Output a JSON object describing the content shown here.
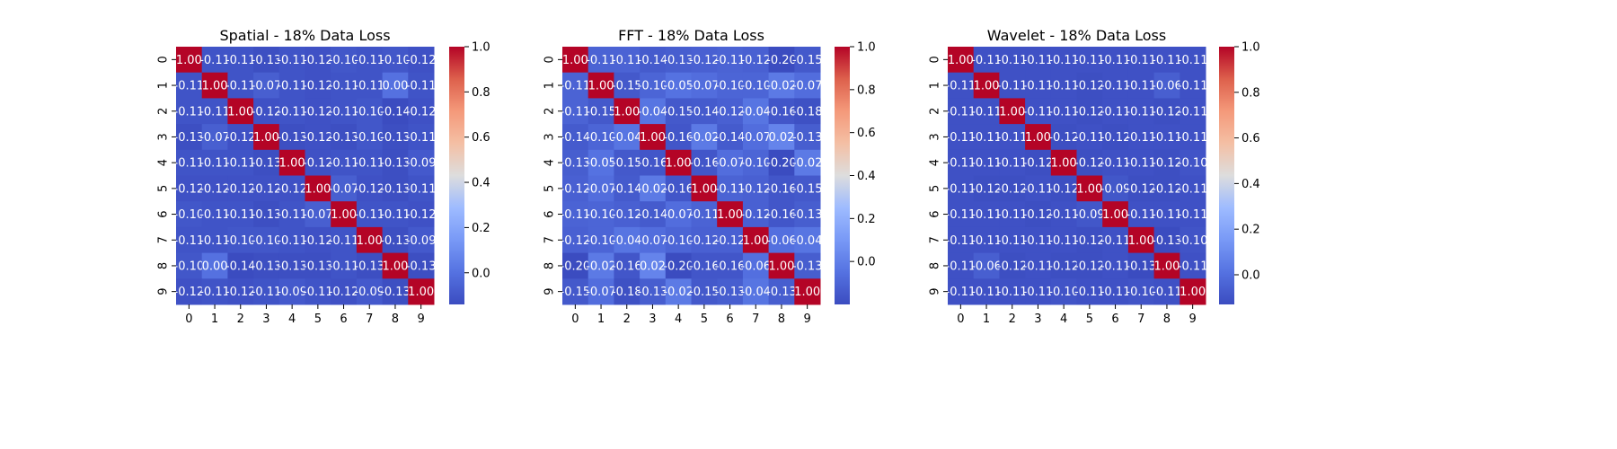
{
  "figure": {
    "colormap": "coolwarm",
    "cell_text_color": "#ffffff"
  },
  "chart_data": [
    {
      "type": "heatmap",
      "title": "Spatial - 18% Data Loss",
      "xlabel": "",
      "ylabel": "",
      "x_tick_labels": [
        "0",
        "1",
        "2",
        "3",
        "4",
        "5",
        "6",
        "7",
        "8",
        "9"
      ],
      "y_tick_labels": [
        "0",
        "1",
        "2",
        "3",
        "4",
        "5",
        "6",
        "7",
        "8",
        "9"
      ],
      "colorbar": {
        "vmin": -0.14,
        "vmax": 1.0,
        "ticks": [
          "0.0",
          "0.2",
          "0.4",
          "0.6",
          "0.8",
          "1.0"
        ]
      },
      "matrix": [
        [
          "1.00",
          "-0.11",
          "-0.11",
          "-0.13",
          "-0.11",
          "-0.12",
          "-0.10",
          "-0.11",
          "-0.10",
          "-0.12"
        ],
        [
          "-0.11",
          "1.00",
          "-0.11",
          "-0.07",
          "-0.11",
          "-0.12",
          "-0.11",
          "-0.11",
          "0.00",
          "-0.11"
        ],
        [
          "-0.11",
          "-0.11",
          "1.00",
          "-0.12",
          "-0.11",
          "-0.12",
          "-0.11",
          "-0.10",
          "-0.14",
          "-0.12"
        ],
        [
          "-0.13",
          "-0.07",
          "-0.12",
          "1.00",
          "-0.13",
          "-0.12",
          "-0.13",
          "-0.10",
          "-0.13",
          "-0.11"
        ],
        [
          "-0.11",
          "-0.11",
          "-0.11",
          "-0.13",
          "1.00",
          "-0.12",
          "-0.11",
          "-0.11",
          "-0.13",
          "-0.09"
        ],
        [
          "-0.12",
          "-0.12",
          "-0.12",
          "-0.12",
          "-0.12",
          "1.00",
          "-0.07",
          "-0.12",
          "-0.13",
          "-0.11"
        ],
        [
          "-0.10",
          "-0.11",
          "-0.11",
          "-0.13",
          "-0.11",
          "-0.07",
          "1.00",
          "-0.11",
          "-0.11",
          "-0.12"
        ],
        [
          "-0.11",
          "-0.11",
          "-0.10",
          "-0.10",
          "-0.11",
          "-0.12",
          "-0.11",
          "1.00",
          "-0.13",
          "-0.09"
        ],
        [
          "-0.10",
          "0.00",
          "-0.14",
          "-0.13",
          "-0.13",
          "-0.13",
          "-0.11",
          "-0.13",
          "1.00",
          "-0.13"
        ],
        [
          "-0.12",
          "-0.11",
          "-0.12",
          "-0.11",
          "-0.09",
          "-0.11",
          "-0.12",
          "-0.09",
          "-0.13",
          "1.00"
        ]
      ]
    },
    {
      "type": "heatmap",
      "title": "FFT - 18% Data Loss",
      "xlabel": "",
      "ylabel": "",
      "x_tick_labels": [
        "0",
        "1",
        "2",
        "3",
        "4",
        "5",
        "6",
        "7",
        "8",
        "9"
      ],
      "y_tick_labels": [
        "0",
        "1",
        "2",
        "3",
        "4",
        "5",
        "6",
        "7",
        "8",
        "9"
      ],
      "colorbar": {
        "vmin": -0.2,
        "vmax": 1.0,
        "ticks": [
          "0.0",
          "0.2",
          "0.4",
          "0.6",
          "0.8",
          "1.0"
        ]
      },
      "matrix": [
        [
          "1.00",
          "-0.11",
          "-0.11",
          "-0.14",
          "-0.13",
          "-0.12",
          "-0.11",
          "-0.12",
          "-0.20",
          "-0.15"
        ],
        [
          "-0.11",
          "1.00",
          "-0.15",
          "-0.10",
          "-0.05",
          "-0.07",
          "-0.10",
          "-0.10",
          "-0.02",
          "-0.07"
        ],
        [
          "-0.11",
          "-0.15",
          "1.00",
          "-0.04",
          "-0.15",
          "-0.14",
          "-0.12",
          "-0.04",
          "-0.16",
          "-0.18"
        ],
        [
          "-0.14",
          "-0.10",
          "-0.04",
          "1.00",
          "-0.16",
          "-0.02",
          "-0.14",
          "-0.07",
          "0.02",
          "-0.13"
        ],
        [
          "-0.13",
          "-0.05",
          "-0.15",
          "-0.16",
          "1.00",
          "-0.16",
          "-0.07",
          "-0.10",
          "-0.20",
          "-0.02"
        ],
        [
          "-0.12",
          "-0.07",
          "-0.14",
          "-0.02",
          "-0.16",
          "1.00",
          "-0.11",
          "-0.12",
          "-0.16",
          "-0.15"
        ],
        [
          "-0.11",
          "-0.10",
          "-0.12",
          "-0.14",
          "-0.07",
          "-0.11",
          "1.00",
          "-0.12",
          "-0.16",
          "-0.13"
        ],
        [
          "-0.12",
          "-0.10",
          "-0.04",
          "-0.07",
          "-0.10",
          "-0.12",
          "-0.12",
          "1.00",
          "-0.06",
          "-0.04"
        ],
        [
          "-0.20",
          "-0.02",
          "-0.16",
          "0.02",
          "-0.20",
          "-0.16",
          "-0.16",
          "-0.06",
          "1.00",
          "-0.13"
        ],
        [
          "-0.15",
          "-0.07",
          "-0.18",
          "-0.13",
          "-0.02",
          "-0.15",
          "-0.13",
          "-0.04",
          "-0.13",
          "1.00"
        ]
      ]
    },
    {
      "type": "heatmap",
      "title": "Wavelet - 18% Data Loss",
      "xlabel": "",
      "ylabel": "",
      "x_tick_labels": [
        "0",
        "1",
        "2",
        "3",
        "4",
        "5",
        "6",
        "7",
        "8",
        "9"
      ],
      "y_tick_labels": [
        "0",
        "1",
        "2",
        "3",
        "4",
        "5",
        "6",
        "7",
        "8",
        "9"
      ],
      "colorbar": {
        "vmin": -0.13,
        "vmax": 1.0,
        "ticks": [
          "0.0",
          "0.2",
          "0.4",
          "0.6",
          "0.8",
          "1.0"
        ]
      },
      "matrix": [
        [
          "1.00",
          "-0.11",
          "-0.11",
          "-0.11",
          "-0.11",
          "-0.11",
          "-0.11",
          "-0.11",
          "-0.11",
          "-0.11"
        ],
        [
          "-0.11",
          "1.00",
          "-0.11",
          "-0.11",
          "-0.11",
          "-0.12",
          "-0.11",
          "-0.11",
          "-0.06",
          "-0.11"
        ],
        [
          "-0.11",
          "-0.11",
          "1.00",
          "-0.11",
          "-0.11",
          "-0.12",
          "-0.11",
          "-0.11",
          "-0.12",
          "-0.11"
        ],
        [
          "-0.11",
          "-0.11",
          "-0.11",
          "1.00",
          "-0.12",
          "-0.11",
          "-0.12",
          "-0.11",
          "-0.11",
          "-0.11"
        ],
        [
          "-0.11",
          "-0.11",
          "-0.11",
          "-0.12",
          "1.00",
          "-0.12",
          "-0.11",
          "-0.11",
          "-0.12",
          "-0.10"
        ],
        [
          "-0.11",
          "-0.12",
          "-0.12",
          "-0.11",
          "-0.12",
          "1.00",
          "-0.09",
          "-0.12",
          "-0.12",
          "-0.11"
        ],
        [
          "-0.11",
          "-0.11",
          "-0.11",
          "-0.12",
          "-0.11",
          "-0.09",
          "1.00",
          "-0.11",
          "-0.11",
          "-0.11"
        ],
        [
          "-0.11",
          "-0.11",
          "-0.11",
          "-0.11",
          "-0.11",
          "-0.12",
          "-0.11",
          "1.00",
          "-0.13",
          "-0.10"
        ],
        [
          "-0.11",
          "-0.06",
          "-0.12",
          "-0.11",
          "-0.12",
          "-0.12",
          "-0.11",
          "-0.13",
          "1.00",
          "-0.11"
        ],
        [
          "-0.11",
          "-0.11",
          "-0.11",
          "-0.11",
          "-0.10",
          "-0.11",
          "-0.11",
          "-0.10",
          "-0.11",
          "1.00"
        ]
      ]
    }
  ]
}
